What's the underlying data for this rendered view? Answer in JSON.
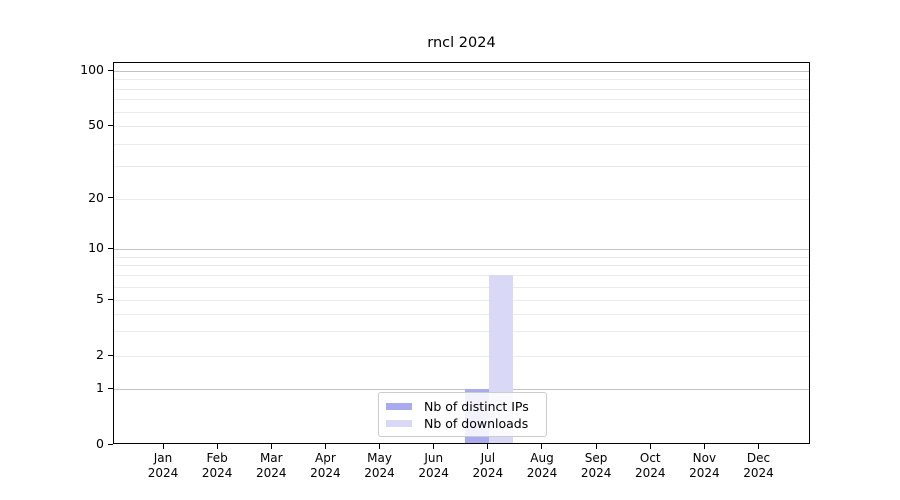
{
  "title": "rncl 2024",
  "colors": {
    "distinct_ips": "#aaaaee",
    "downloads": "#d9d9f7",
    "grid_major": "#c3c3c3",
    "grid_minor": "#ebebeb",
    "axis": "#000000"
  },
  "legend": {
    "items": [
      {
        "label": "Nb of distinct IPs",
        "color_key": "distinct_ips"
      },
      {
        "label": "Nb of downloads",
        "color_key": "downloads"
      }
    ]
  },
  "x_axis": {
    "months": [
      "Jan",
      "Feb",
      "Mar",
      "Apr",
      "May",
      "Jun",
      "Jul",
      "Aug",
      "Sep",
      "Oct",
      "Nov",
      "Dec"
    ],
    "year": "2024"
  },
  "y_axis": {
    "tick_values": [
      0,
      1,
      2,
      5,
      10,
      20,
      50,
      100
    ],
    "minor_grid_values": [
      2,
      3,
      4,
      5,
      6,
      7,
      8,
      9,
      20,
      30,
      40,
      50,
      60,
      70,
      80,
      90
    ],
    "major_grid_values": [
      1,
      10,
      100
    ]
  },
  "chart_data": {
    "type": "bar",
    "title": "rncl 2024",
    "categories": [
      "Jan 2024",
      "Feb 2024",
      "Mar 2024",
      "Apr 2024",
      "May 2024",
      "Jun 2024",
      "Jul 2024",
      "Aug 2024",
      "Sep 2024",
      "Oct 2024",
      "Nov 2024",
      "Dec 2024"
    ],
    "series": [
      {
        "name": "Nb of distinct IPs",
        "color": "#aaaaee",
        "values": [
          0,
          0,
          0,
          0,
          0,
          0,
          1,
          0,
          0,
          0,
          0,
          0
        ]
      },
      {
        "name": "Nb of downloads",
        "color": "#d9d9f7",
        "values": [
          0,
          0,
          0,
          0,
          0,
          0,
          7,
          0,
          0,
          0,
          0,
          0
        ]
      }
    ],
    "xlabel": "",
    "ylabel": "",
    "yscale": "log-like with linear 0-1 segment",
    "y_ticks": [
      0,
      1,
      2,
      5,
      10,
      20,
      50,
      100
    ],
    "ylim": [
      0,
      110
    ],
    "grid": "horizontal",
    "legend_position": "lower center"
  }
}
